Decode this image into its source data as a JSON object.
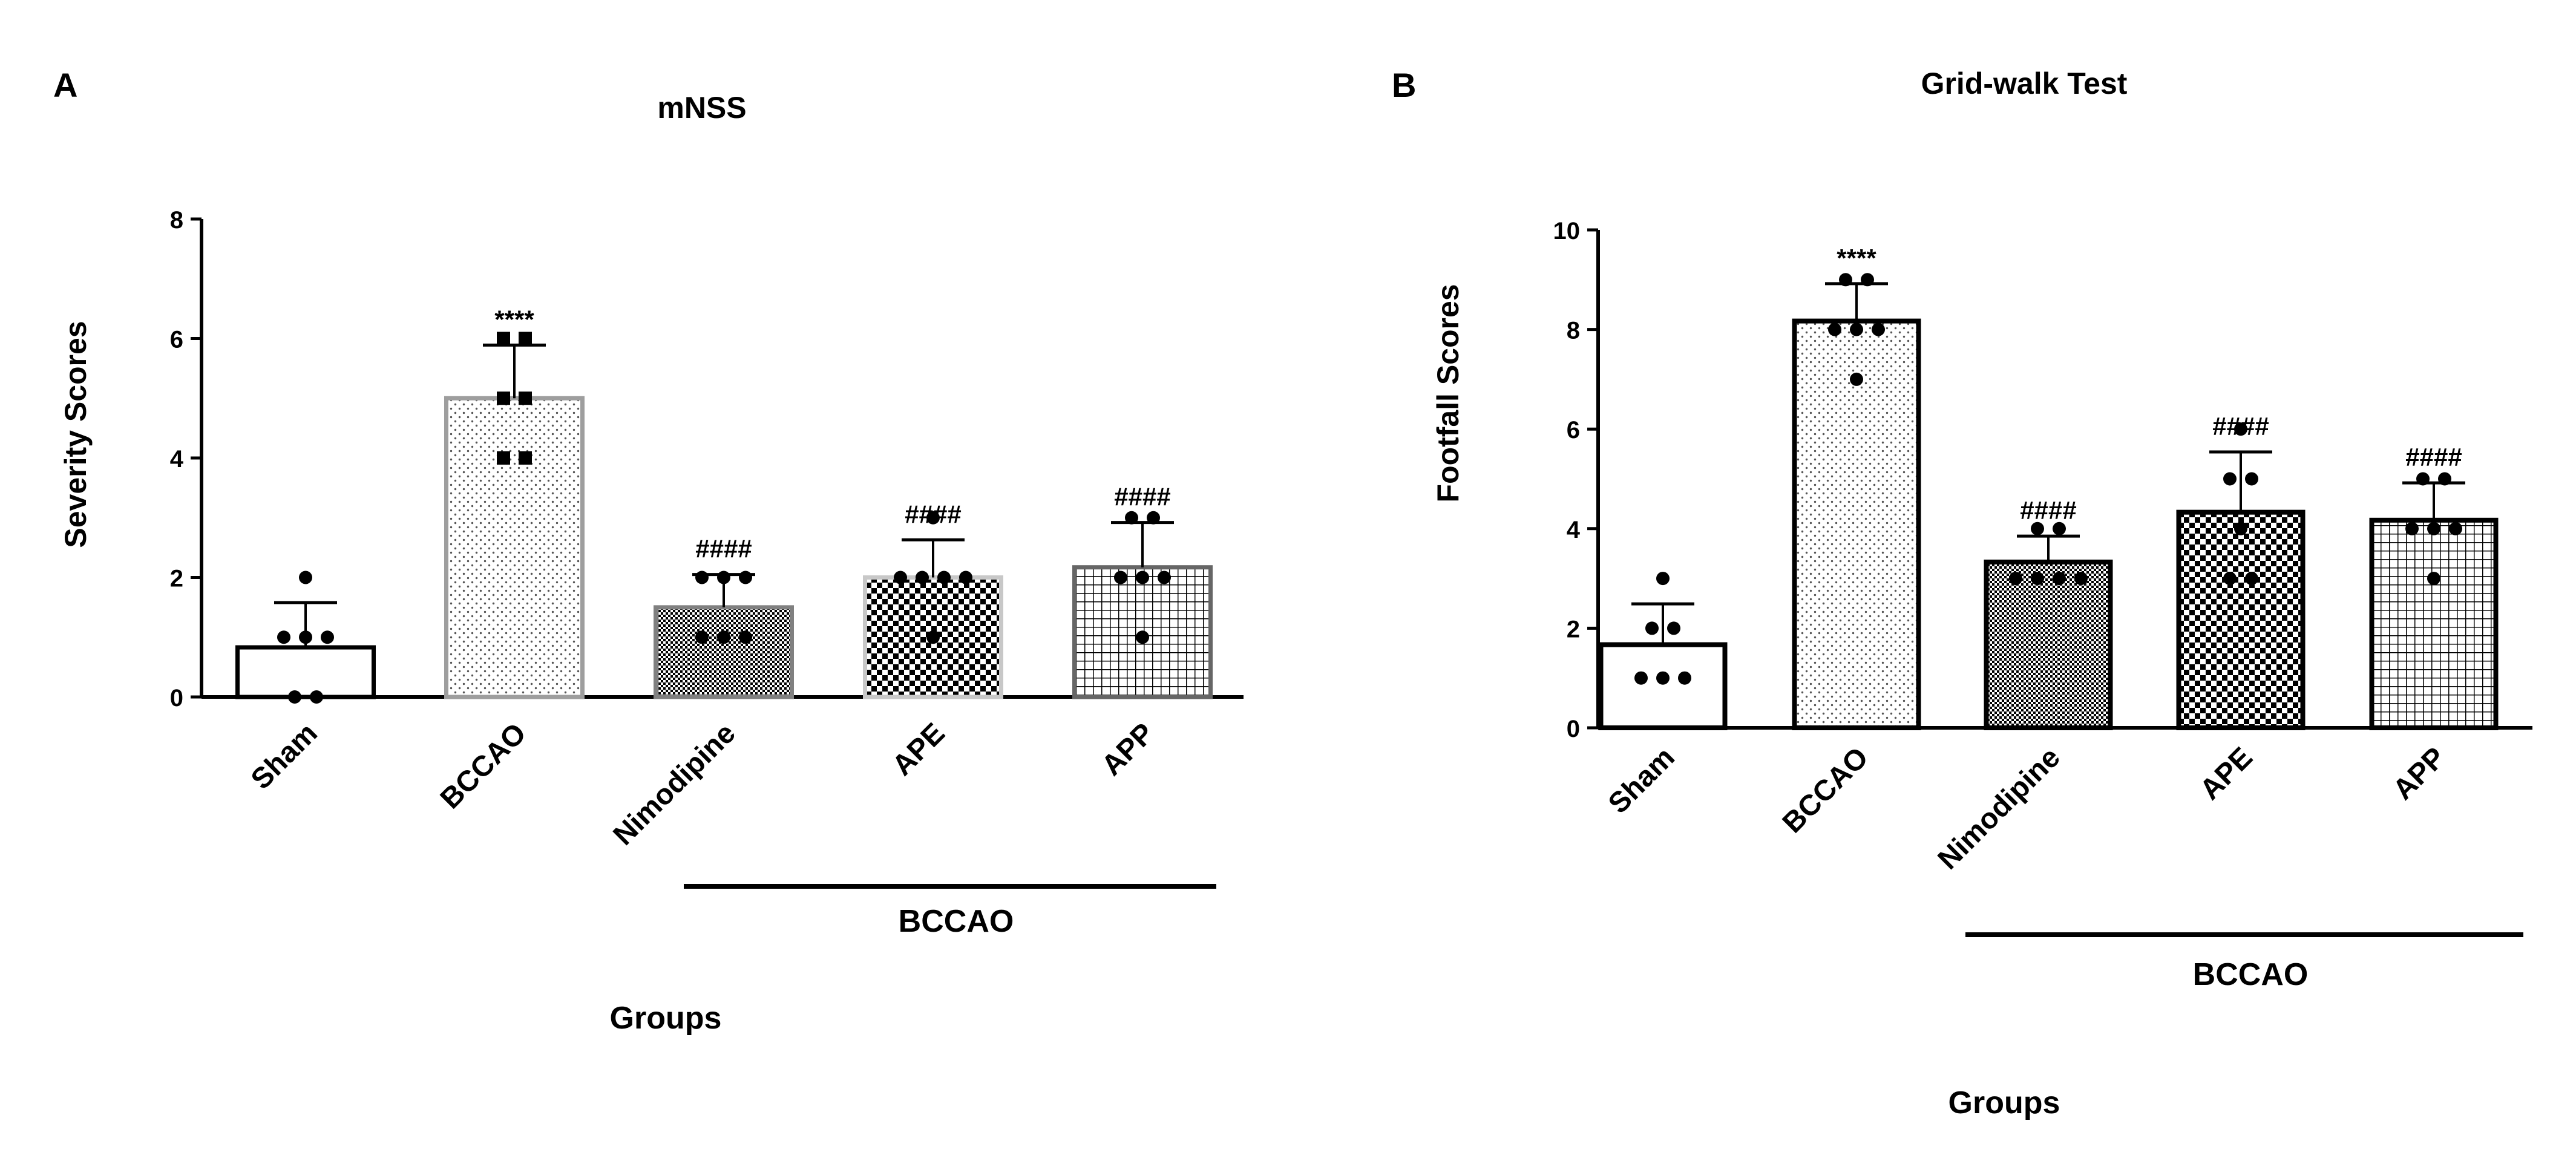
{
  "figure": {
    "panel_a_letter": "A",
    "panel_b_letter": "B"
  },
  "chart_data": [
    {
      "type": "bar",
      "title": "mNSS",
      "xlabel": "Groups",
      "ylabel": "Severity Scores",
      "ylim": [
        0,
        8
      ],
      "yticks": [
        0,
        2,
        4,
        6,
        8
      ],
      "categories": [
        "Sham",
        "BCCAO",
        "Nimodipine",
        "APE",
        "APP"
      ],
      "values": [
        0.83,
        5.0,
        1.5,
        2.0,
        2.17
      ],
      "error": [
        0.75,
        0.89,
        0.55,
        0.63,
        0.75
      ],
      "points": [
        [
          0,
          0,
          1,
          1,
          1,
          2
        ],
        [
          4,
          4,
          5,
          5,
          6,
          6
        ],
        [
          1,
          1,
          1,
          2,
          2,
          2
        ],
        [
          1,
          2,
          2,
          2,
          2,
          3
        ],
        [
          1,
          2,
          2,
          2,
          3,
          3
        ]
      ],
      "annotations": [
        "",
        "****",
        "####",
        "####",
        "####"
      ],
      "group_bracket": {
        "label": "BCCAO",
        "from": 2,
        "to": 4
      },
      "legend": "none",
      "grid": false,
      "bar_fills": [
        "white",
        "sparse-dots",
        "fine-checker",
        "checker",
        "grid"
      ],
      "bar_strokes": [
        "#000000",
        "#9e9e9e",
        "#808080",
        "#c8c8c8",
        "#666666"
      ]
    },
    {
      "type": "bar",
      "title": "Grid-walk Test",
      "xlabel": "Groups",
      "ylabel": "Footfall Scores",
      "ylim": [
        0,
        10
      ],
      "yticks": [
        0,
        2,
        4,
        6,
        8,
        10
      ],
      "categories": [
        "Sham",
        "BCCAO",
        "Nimodipine",
        "APE",
        "APP"
      ],
      "values": [
        1.67,
        8.17,
        3.33,
        4.33,
        4.17
      ],
      "error": [
        0.82,
        0.75,
        0.52,
        1.21,
        0.75
      ],
      "points": [
        [
          1,
          1,
          1,
          2,
          2,
          3
        ],
        [
          7,
          8,
          8,
          8,
          9,
          9
        ],
        [
          3,
          3,
          3,
          3,
          4,
          4
        ],
        [
          3,
          3,
          4,
          5,
          5,
          6
        ],
        [
          3,
          4,
          4,
          4,
          5,
          5
        ]
      ],
      "annotations": [
        "",
        "****",
        "####",
        "####",
        "####"
      ],
      "group_bracket": {
        "label": "BCCAO",
        "from": 2,
        "to": 4
      },
      "legend": "none",
      "grid": false,
      "bar_fills": [
        "white",
        "sparse-dots",
        "fine-checker",
        "checker",
        "grid"
      ],
      "bar_strokes": [
        "#000000",
        "#000000",
        "#000000",
        "#000000",
        "#000000"
      ]
    }
  ]
}
